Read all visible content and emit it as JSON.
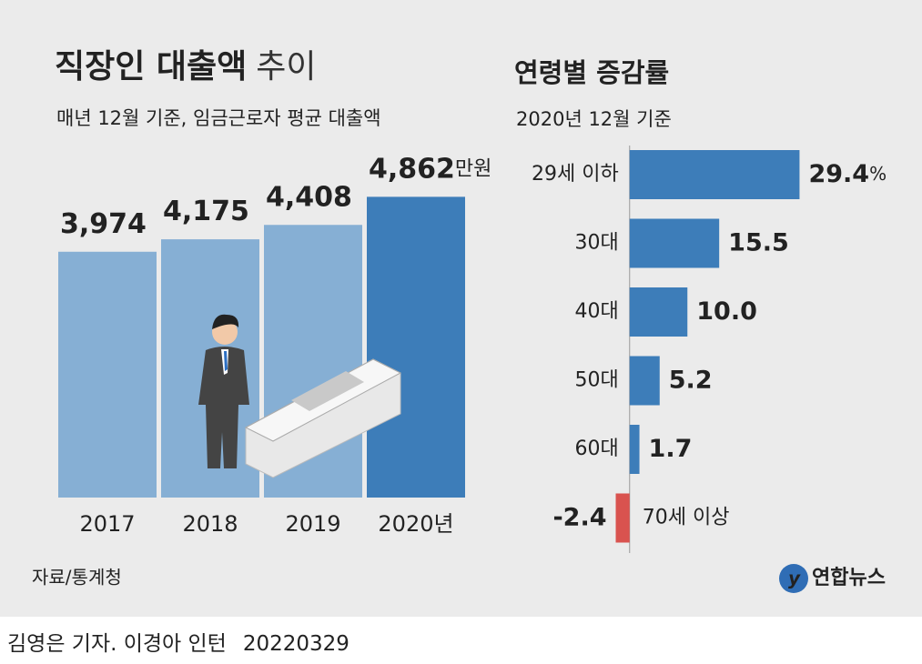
{
  "chart_data": [
    {
      "type": "bar",
      "title": "직장인 대출액",
      "title_extra": "추이",
      "subtitle": "매년 12월 기준, 임금근로자 평균 대출액",
      "categories": [
        "2017",
        "2018",
        "2019",
        "2020년"
      ],
      "values": [
        3974,
        4175,
        4408,
        4862
      ],
      "value_labels": [
        "3,974",
        "4,175",
        "4,408",
        "4,862"
      ],
      "unit": "만원",
      "colors": [
        "#86afd4",
        "#86afd4",
        "#86afd4",
        "#3d7db9"
      ],
      "ylim": [
        0,
        5000
      ],
      "source": "자료/통계청"
    },
    {
      "type": "hbar",
      "title": "연령별 증감률",
      "subtitle": "2020년 12월 기준",
      "categories": [
        "29세 이하",
        "30대",
        "40대",
        "50대",
        "60대",
        "70세 이상"
      ],
      "values": [
        29.4,
        15.5,
        10.0,
        5.2,
        1.7,
        -2.4
      ],
      "value_labels": [
        "29.4",
        "15.5",
        "10.0",
        "5.2",
        "1.7",
        "-2.4"
      ],
      "unit": "%",
      "color": "#3d7db9",
      "negative_color": "#d9534f",
      "xlim": [
        -5,
        35
      ]
    }
  ],
  "footer": {
    "credit": "김영은 기자. 이경아 인턴",
    "date": "20220329",
    "logo": "연합뉴스"
  }
}
